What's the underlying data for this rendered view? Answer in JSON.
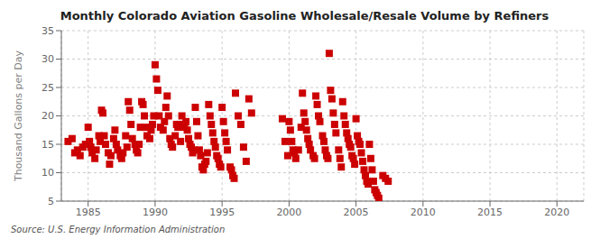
{
  "chart_data": {
    "type": "scatter",
    "title": "Monthly Colorado Aviation Gasoline Wholesale/Resale Volume by Refiners",
    "ylabel": "Thousand Gallons per Day",
    "annotations": [
      "Source: U.S. Energy Information Administration"
    ],
    "color": "#cc0000",
    "marker": "square",
    "grid": true,
    "xlim": [
      1983,
      2022
    ],
    "ylim": [
      5,
      35
    ],
    "xticks": [
      1985,
      1990,
      1995,
      2000,
      2005,
      2010,
      2015,
      2020
    ],
    "yticks": [
      5,
      10,
      15,
      20,
      25,
      30,
      35
    ],
    "x": [
      1983.5,
      1983.8,
      1984.0,
      1984.2,
      1984.4,
      1984.6,
      1984.8,
      1985.0,
      1985.1,
      1985.2,
      1985.3,
      1985.5,
      1985.6,
      1985.8,
      1985.9,
      1986.0,
      1986.1,
      1986.2,
      1986.3,
      1986.5,
      1986.6,
      1986.7,
      1986.9,
      1987.0,
      1987.1,
      1987.2,
      1987.4,
      1987.5,
      1987.6,
      1987.8,
      1987.9,
      1988.0,
      1988.1,
      1988.2,
      1988.3,
      1988.5,
      1988.6,
      1988.7,
      1988.8,
      1988.9,
      1989.0,
      1989.1,
      1989.2,
      1989.3,
      1989.4,
      1989.6,
      1989.7,
      1989.8,
      1989.9,
      1990.0,
      1990.1,
      1990.2,
      1990.3,
      1990.4,
      1990.6,
      1990.7,
      1990.8,
      1990.9,
      1991.0,
      1991.1,
      1991.2,
      1991.3,
      1991.5,
      1991.6,
      1991.7,
      1991.8,
      1991.9,
      1992.0,
      1992.1,
      1992.2,
      1992.3,
      1992.4,
      1992.5,
      1992.6,
      1992.7,
      1992.8,
      1992.9,
      1993.0,
      1993.1,
      1993.2,
      1993.3,
      1993.4,
      1993.5,
      1993.6,
      1993.7,
      1993.8,
      1993.9,
      1994.0,
      1994.1,
      1994.2,
      1994.3,
      1994.4,
      1994.5,
      1994.6,
      1994.7,
      1994.8,
      1994.9,
      1995.0,
      1995.1,
      1995.2,
      1995.3,
      1995.4,
      1995.6,
      1995.7,
      1995.8,
      1995.9,
      1996.0,
      1996.2,
      1996.4,
      1996.6,
      1996.8,
      1997.0,
      1997.2,
      1999.5,
      1999.7,
      1999.9,
      2000.0,
      2000.1,
      2000.2,
      2000.3,
      2000.4,
      2000.5,
      2000.7,
      2000.9,
      2001.0,
      2001.1,
      2001.2,
      2001.3,
      2001.4,
      2001.5,
      2001.6,
      2001.8,
      2001.9,
      2002.0,
      2002.1,
      2002.2,
      2002.3,
      2002.5,
      2002.6,
      2002.7,
      2002.8,
      2002.9,
      2003.0,
      2003.1,
      2003.2,
      2003.3,
      2003.4,
      2003.5,
      2003.7,
      2003.8,
      2003.9,
      2004.0,
      2004.1,
      2004.2,
      2004.3,
      2004.4,
      2004.5,
      2004.6,
      2004.7,
      2004.8,
      2004.9,
      2005.0,
      2005.1,
      2005.2,
      2005.3,
      2005.4,
      2005.5,
      2005.6,
      2005.7,
      2005.8,
      2005.9,
      2006.0,
      2006.1,
      2006.2,
      2006.3,
      2006.4,
      2006.5,
      2006.6,
      2006.7,
      2007.0,
      2007.2,
      2007.4
    ],
    "values": [
      15.5,
      16.0,
      13.5,
      14.0,
      13.0,
      14.5,
      15.0,
      18.0,
      15.5,
      14.5,
      13.5,
      12.5,
      14.0,
      16.5,
      15.5,
      21.0,
      20.5,
      16.5,
      15.0,
      13.5,
      11.5,
      13.0,
      16.0,
      17.5,
      15.0,
      14.0,
      13.0,
      12.5,
      13.5,
      16.5,
      14.5,
      22.5,
      21.0,
      18.5,
      16.0,
      15.0,
      14.0,
      13.5,
      15.0,
      18.0,
      22.5,
      22.0,
      20.0,
      18.0,
      16.5,
      16.0,
      17.5,
      18.5,
      20.0,
      29.0,
      26.5,
      24.5,
      20.0,
      18.0,
      17.5,
      19.0,
      21.5,
      23.5,
      20.0,
      16.0,
      15.0,
      14.5,
      16.5,
      18.5,
      18.0,
      18.5,
      15.5,
      20.0,
      18.5,
      18.0,
      19.0,
      17.5,
      16.0,
      15.0,
      14.5,
      13.5,
      14.0,
      21.5,
      19.0,
      16.5,
      14.0,
      13.0,
      11.0,
      10.5,
      11.5,
      12.0,
      13.5,
      22.0,
      20.0,
      18.5,
      17.0,
      15.5,
      14.5,
      13.0,
      12.5,
      11.5,
      11.0,
      21.5,
      19.0,
      17.0,
      15.5,
      14.0,
      11.0,
      10.5,
      9.5,
      9.0,
      24.0,
      20.0,
      18.5,
      14.5,
      12.0,
      23.0,
      20.5,
      19.5,
      15.5,
      13.0,
      19.0,
      17.5,
      15.5,
      14.0,
      13.5,
      12.5,
      14.0,
      18.0,
      24.0,
      20.5,
      19.0,
      17.5,
      16.0,
      15.0,
      14.0,
      13.0,
      12.5,
      23.5,
      22.0,
      20.0,
      19.0,
      16.5,
      15.5,
      14.0,
      13.0,
      12.5,
      31.0,
      24.5,
      23.0,
      20.5,
      18.5,
      17.0,
      14.0,
      12.5,
      11.0,
      22.5,
      20.0,
      18.5,
      17.0,
      16.0,
      15.0,
      14.5,
      13.0,
      12.5,
      11.5,
      19.5,
      16.5,
      15.5,
      15.0,
      13.5,
      12.0,
      10.5,
      9.5,
      8.5,
      8.0,
      15.0,
      12.5,
      10.5,
      8.5,
      7.0,
      6.5,
      6.0,
      5.5,
      9.5,
      9.0,
      8.5
    ]
  }
}
